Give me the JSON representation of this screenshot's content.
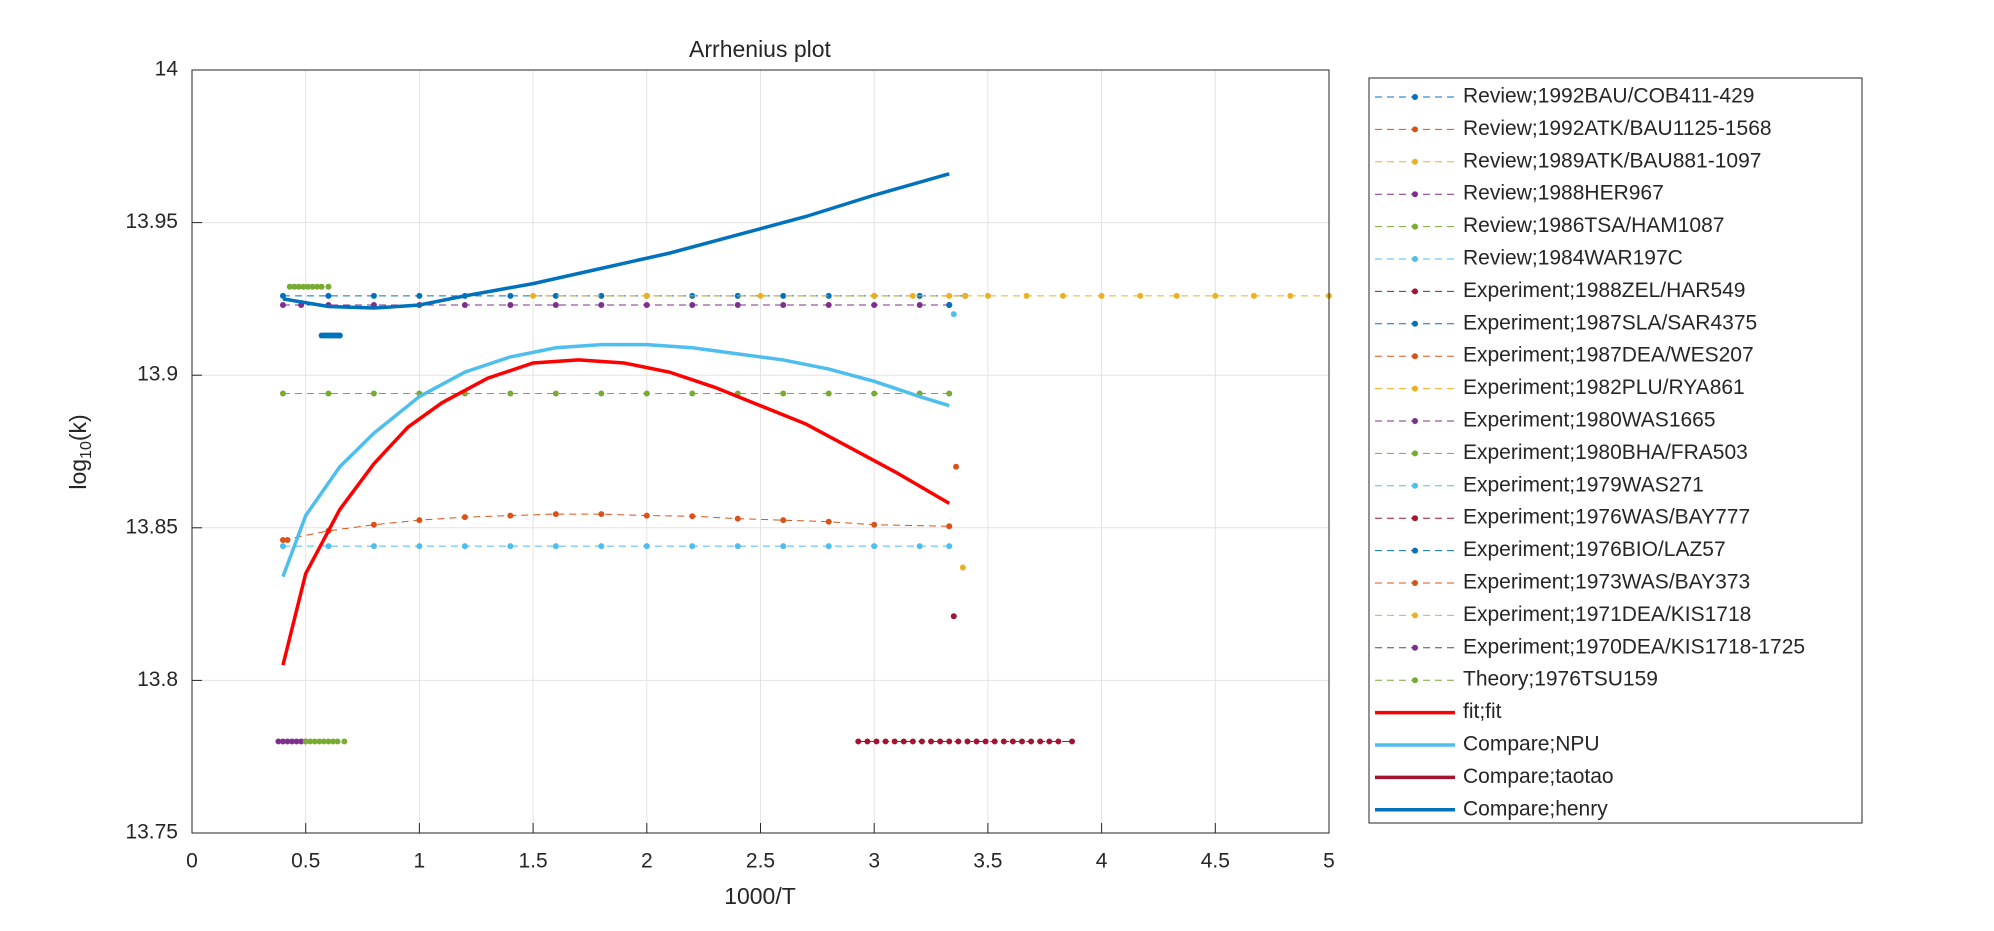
{
  "chart_data": {
    "type": "line",
    "title": "Arrhenius plot",
    "xlabel": "1000/T",
    "ylabel": [
      "log",
      "10",
      "(k)"
    ],
    "xlim": [
      0,
      5
    ],
    "xticks": [
      0,
      0.5,
      1,
      1.5,
      2,
      2.5,
      3,
      3.5,
      4,
      4.5,
      5
    ],
    "ylim": [
      13.75,
      14
    ],
    "yticks": [
      13.75,
      13.8,
      13.85,
      13.9,
      13.95,
      14
    ],
    "grid": true,
    "legend": "outside-right",
    "series": [
      {
        "name": "Review;1992BAU/COB411-429",
        "color": "#0072BD",
        "style": "dashed",
        "x": [
          0.4,
          0.6,
          0.8,
          1.0,
          1.2,
          1.4,
          1.6,
          1.8,
          2.0,
          2.2,
          2.4,
          2.6,
          2.8,
          3.0,
          3.2,
          3.4
        ],
        "values": [
          13.926,
          13.926,
          13.926,
          13.926,
          13.926,
          13.926,
          13.926,
          13.926,
          13.926,
          13.926,
          13.926,
          13.926,
          13.926,
          13.926,
          13.926,
          13.926
        ]
      },
      {
        "name": "Review;1992ATK/BAU1125-1568",
        "color": "#D95319",
        "style": "dashed",
        "x": [
          0.4,
          0.6,
          0.8,
          1.0,
          1.2,
          1.4,
          1.6,
          1.8,
          2.0,
          2.2,
          2.4,
          2.6,
          2.8,
          3.0,
          3.33
        ],
        "values": [
          13.846,
          13.849,
          13.851,
          13.8525,
          13.8535,
          13.854,
          13.8545,
          13.8545,
          13.854,
          13.8538,
          13.853,
          13.8525,
          13.852,
          13.851,
          13.8505
        ]
      },
      {
        "name": "Review;1989ATK/BAU881-1097",
        "color": "#EDB120",
        "style": "dashed",
        "x": [
          1.5,
          2.0,
          2.5,
          3.0,
          3.17,
          3.33,
          3.5,
          3.67,
          3.83,
          4.0,
          4.17,
          4.33,
          4.5,
          4.67,
          4.83,
          5.0
        ],
        "values": [
          13.926,
          13.926,
          13.926,
          13.926,
          13.926,
          13.926,
          13.926,
          13.926,
          13.926,
          13.926,
          13.926,
          13.926,
          13.926,
          13.926,
          13.926,
          13.926
        ]
      },
      {
        "name": "Review;1988HER967",
        "color": "#7E2F8E",
        "style": "dashed",
        "x": [
          0.4,
          0.6,
          0.8,
          1.0,
          1.2,
          1.4,
          1.6,
          1.8,
          2.0,
          2.2,
          2.4,
          2.6,
          2.8,
          3.0,
          3.2,
          3.33
        ],
        "values": [
          13.923,
          13.923,
          13.923,
          13.923,
          13.923,
          13.923,
          13.923,
          13.923,
          13.923,
          13.923,
          13.923,
          13.923,
          13.923,
          13.923,
          13.923,
          13.923
        ]
      },
      {
        "name": "Review;1986TSA/HAM1087",
        "color": "#77AC30",
        "style": "dashed",
        "x": [
          0.4,
          0.6,
          0.8,
          1.0,
          1.2,
          1.4,
          1.6,
          1.8,
          2.0,
          2.2,
          2.4,
          2.6,
          2.8,
          3.0,
          3.2,
          3.33
        ],
        "values": [
          13.894,
          13.894,
          13.894,
          13.894,
          13.894,
          13.894,
          13.894,
          13.894,
          13.894,
          13.894,
          13.894,
          13.894,
          13.894,
          13.894,
          13.894,
          13.894
        ]
      },
      {
        "name": "Review;1984WAR197C",
        "color": "#4DBEEE",
        "style": "dashed",
        "x": [
          0.4,
          0.6,
          0.8,
          1.0,
          1.2,
          1.4,
          1.6,
          1.8,
          2.0,
          2.2,
          2.4,
          2.6,
          2.8,
          3.0,
          3.2,
          3.33
        ],
        "values": [
          13.844,
          13.844,
          13.844,
          13.844,
          13.844,
          13.844,
          13.844,
          13.844,
          13.844,
          13.844,
          13.844,
          13.844,
          13.844,
          13.844,
          13.844,
          13.844
        ]
      },
      {
        "name": "Experiment;1988ZEL/HAR549",
        "color": "#A2142F",
        "style": "dashed",
        "x": [
          3.35
        ],
        "values": [
          13.821
        ]
      },
      {
        "name": "Experiment;1987SLA/SAR4375",
        "color": "#0072BD",
        "style": "dashed",
        "x": [
          0.57,
          0.58,
          0.59,
          0.6,
          0.61,
          0.62,
          0.63,
          0.64,
          0.65
        ],
        "values": [
          13.913,
          13.913,
          13.913,
          13.913,
          13.913,
          13.913,
          13.913,
          13.913,
          13.913
        ]
      },
      {
        "name": "Experiment;1987DEA/WES207",
        "color": "#D95319",
        "style": "dashed",
        "x": [
          3.36
        ],
        "values": [
          13.87
        ]
      },
      {
        "name": "Experiment;1982PLU/RYA861",
        "color": "#EDB120",
        "style": "dashed",
        "x": [
          3.39
        ],
        "values": [
          13.837
        ]
      },
      {
        "name": "Experiment;1980WAS1665",
        "color": "#7E2F8E",
        "style": "dashed",
        "x": [
          0.38,
          0.4,
          0.42,
          0.44,
          0.46,
          0.48,
          0.5
        ],
        "values": [
          13.78,
          13.78,
          13.78,
          13.78,
          13.78,
          13.78,
          13.78
        ]
      },
      {
        "name": "Experiment;1980BHA/FRA503",
        "color": "#77AC30",
        "style": "dashed",
        "x": [
          0.5,
          0.52,
          0.54,
          0.56,
          0.58,
          0.6,
          0.62,
          0.64,
          0.67
        ],
        "values": [
          13.78,
          13.78,
          13.78,
          13.78,
          13.78,
          13.78,
          13.78,
          13.78,
          13.78
        ]
      },
      {
        "name": "Experiment;1979WAS271",
        "color": "#4DBEEE",
        "style": "dashed",
        "x": [
          3.35
        ],
        "values": [
          13.92
        ]
      },
      {
        "name": "Experiment;1976WAS/BAY777",
        "color": "#A2142F",
        "style": "dashed",
        "x": [
          2.93,
          2.97,
          3.01,
          3.05,
          3.09,
          3.13,
          3.17,
          3.21,
          3.25,
          3.29,
          3.33,
          3.37,
          3.41,
          3.45,
          3.49,
          3.53,
          3.57,
          3.61,
          3.65,
          3.69,
          3.73,
          3.77,
          3.81,
          3.87
        ],
        "values": [
          13.78,
          13.78,
          13.78,
          13.78,
          13.78,
          13.78,
          13.78,
          13.78,
          13.78,
          13.78,
          13.78,
          13.78,
          13.78,
          13.78,
          13.78,
          13.78,
          13.78,
          13.78,
          13.78,
          13.78,
          13.78,
          13.78,
          13.78,
          13.78
        ]
      },
      {
        "name": "Experiment;1976BIO/LAZ57",
        "color": "#0072BD",
        "style": "dashed",
        "x": [
          3.33
        ],
        "values": [
          13.923
        ]
      },
      {
        "name": "Experiment;1973WAS/BAY373",
        "color": "#D95319",
        "style": "dashed",
        "x": [
          0.42
        ],
        "values": [
          13.846
        ]
      },
      {
        "name": "Experiment;1971DEA/KIS1718",
        "color": "#EDB120",
        "style": "dashed",
        "x": [
          3.4
        ],
        "values": [
          13.926
        ]
      },
      {
        "name": "Experiment;1970DEA/KIS1718-1725",
        "color": "#7E2F8E",
        "style": "dashed",
        "x": [
          0.48
        ],
        "values": [
          13.923
        ]
      },
      {
        "name": "Theory;1976TSU159",
        "color": "#77AC30",
        "style": "dashed",
        "x": [
          0.43,
          0.45,
          0.47,
          0.49,
          0.51,
          0.53,
          0.55,
          0.57,
          0.6
        ],
        "values": [
          13.929,
          13.929,
          13.929,
          13.929,
          13.929,
          13.929,
          13.929,
          13.929,
          13.929
        ]
      },
      {
        "name": "fit;fit",
        "color": "#FF0000",
        "style": "solid",
        "x": [
          0.4,
          0.5,
          0.65,
          0.8,
          0.95,
          1.1,
          1.3,
          1.5,
          1.7,
          1.9,
          2.1,
          2.3,
          2.5,
          2.7,
          2.9,
          3.1,
          3.33
        ],
        "values": [
          13.805,
          13.835,
          13.856,
          13.871,
          13.883,
          13.891,
          13.899,
          13.904,
          13.905,
          13.904,
          13.901,
          13.896,
          13.89,
          13.884,
          13.876,
          13.868,
          13.858
        ]
      },
      {
        "name": "Compare;NPU",
        "color": "#4DBEEE",
        "style": "solid",
        "x": [
          0.4,
          0.5,
          0.65,
          0.8,
          1.0,
          1.2,
          1.4,
          1.6,
          1.8,
          2.0,
          2.2,
          2.4,
          2.6,
          2.8,
          3.0,
          3.2,
          3.33
        ],
        "values": [
          13.834,
          13.854,
          13.87,
          13.881,
          13.893,
          13.901,
          13.906,
          13.909,
          13.91,
          13.91,
          13.909,
          13.907,
          13.905,
          13.902,
          13.898,
          13.893,
          13.89
        ]
      },
      {
        "name": "Compare;taotao",
        "color": "#A2142F",
        "style": "solid",
        "x": [],
        "values": []
      },
      {
        "name": "Compare;henry",
        "color": "#0072BD",
        "style": "solid",
        "x": [
          0.4,
          0.6,
          0.8,
          1.0,
          1.2,
          1.5,
          1.8,
          2.1,
          2.4,
          2.7,
          3.0,
          3.33
        ],
        "values": [
          13.925,
          13.9225,
          13.922,
          13.923,
          13.926,
          13.93,
          13.935,
          13.94,
          13.946,
          13.952,
          13.959,
          13.966
        ]
      }
    ]
  }
}
